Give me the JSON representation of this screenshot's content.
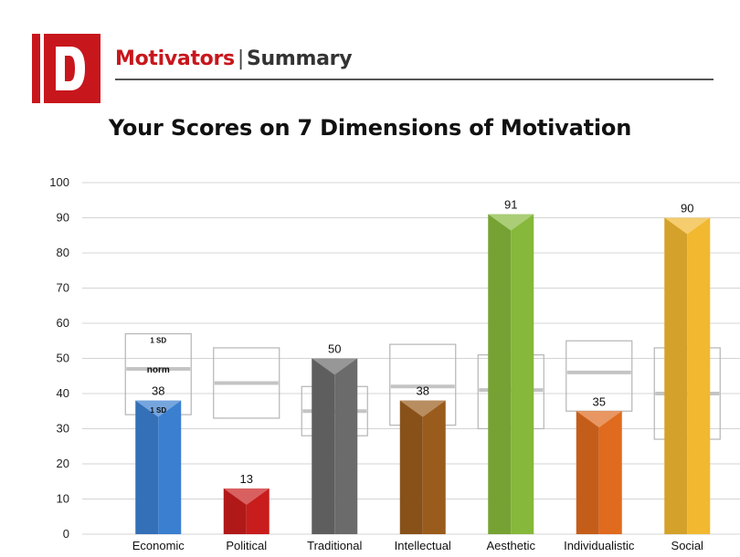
{
  "header": {
    "title_accent": "Motivators",
    "title_separator": "|",
    "title_rest": "Summary",
    "logo_letter": "D",
    "brand_color": "#c8161d"
  },
  "chart_data": {
    "type": "bar",
    "title": "Your Scores on 7 Dimensions of Motivation",
    "xlabel": "",
    "ylabel": "",
    "ylim": [
      0,
      100
    ],
    "yticks": [
      0,
      10,
      20,
      30,
      40,
      50,
      60,
      70,
      80,
      90,
      100
    ],
    "grid": true,
    "categories": [
      "Economic",
      "Political",
      "Traditional",
      "Intellectual",
      "Aesthetic",
      "Individualistic",
      "Social"
    ],
    "values": [
      38,
      13,
      50,
      38,
      91,
      35,
      90
    ],
    "colors": [
      "#3b7fd0",
      "#c91c1c",
      "#6b6b6b",
      "#9a5c1c",
      "#86b83b",
      "#e06a1e",
      "#f1b830"
    ],
    "norm_bands": [
      {
        "low": 34,
        "high": 57,
        "norm": 47
      },
      {
        "low": 33,
        "high": 53,
        "norm": 43
      },
      {
        "low": 28,
        "high": 42,
        "norm": 35
      },
      {
        "low": 31,
        "high": 54,
        "norm": 42
      },
      {
        "low": 30,
        "high": 51,
        "norm": 41
      },
      {
        "low": 35,
        "high": 55,
        "norm": 46
      },
      {
        "low": 27,
        "high": 53,
        "norm": 40
      }
    ],
    "annotations": {
      "sd_label": "1 SD",
      "norm_label": "norm"
    }
  }
}
